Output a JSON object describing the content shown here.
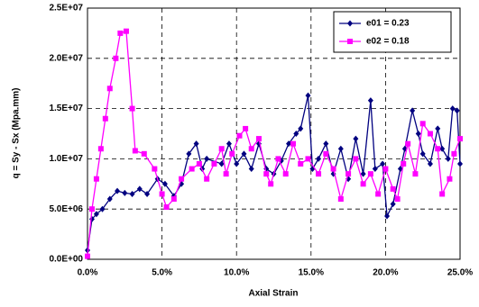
{
  "chart_data": {
    "type": "line",
    "x_label": "Axial Strain",
    "y_label": "q = Sy - Sx (Mpa.mm)",
    "xlim": [
      0,
      25
    ],
    "ylim": [
      0,
      25000000
    ],
    "xticks": [
      {
        "value": 0,
        "label": "0.0%"
      },
      {
        "value": 5,
        "label": "5.0%"
      },
      {
        "value": 10,
        "label": "10.0%"
      },
      {
        "value": 15,
        "label": "15.0%"
      },
      {
        "value": 20,
        "label": "20.0%"
      },
      {
        "value": 25,
        "label": "25.0%"
      }
    ],
    "yticks": [
      {
        "value": 0,
        "label": "0.0E+00"
      },
      {
        "value": 5000000,
        "label": "5.0E+06"
      },
      {
        "value": 10000000,
        "label": "1.0E+07"
      },
      {
        "value": 15000000,
        "label": "1.5E+07"
      },
      {
        "value": 20000000,
        "label": "2.0E+07"
      },
      {
        "value": 25000000,
        "label": "2.5E+07"
      }
    ],
    "grid": true,
    "legend_position": "top-right",
    "series": [
      {
        "name": "e01 = 0.23",
        "color": "#000080",
        "marker": "diamond",
        "x": [
          0,
          0.3,
          0.6,
          1,
          1.5,
          2,
          2.5,
          3,
          3.5,
          4,
          4.7,
          5.2,
          5.8,
          6.3,
          6.8,
          7.3,
          7.7,
          8,
          9,
          9.5,
          10,
          10.5,
          11,
          11.5,
          12,
          12.5,
          13,
          13.5,
          14,
          14.3,
          14.8,
          15.1,
          15.5,
          16,
          16.5,
          17,
          17.5,
          18,
          18.5,
          19,
          19.3,
          19.8,
          20.1,
          20.5,
          21,
          21.3,
          21.8,
          22.2,
          22.5,
          23,
          23.5,
          23.8,
          24.2,
          24.5,
          24.8,
          25
        ],
        "values": [
          900000,
          4000000,
          4500000,
          5000000,
          6000000,
          6800000,
          6600000,
          6500000,
          7000000,
          6500000,
          8000000,
          7500000,
          6300000,
          7500000,
          10500000,
          11500000,
          9000000,
          10000000,
          9500000,
          11500000,
          9500000,
          10500000,
          9000000,
          11500000,
          9000000,
          8500000,
          9800000,
          11500000,
          12500000,
          13000000,
          16300000,
          9000000,
          10000000,
          11500000,
          8500000,
          11000000,
          8000000,
          12000000,
          8500000,
          15800000,
          9000000,
          9500000,
          4300000,
          5500000,
          9000000,
          11000000,
          14800000,
          12500000,
          10500000,
          9500000,
          13000000,
          11000000,
          10000000,
          15000000,
          14800000,
          9500000
        ]
      },
      {
        "name": "e02 = 0.18",
        "color": "#FF00FF",
        "marker": "square",
        "x": [
          0,
          0.3,
          0.6,
          0.9,
          1.2,
          1.5,
          1.9,
          2.2,
          2.6,
          3,
          3.2,
          3.8,
          4.5,
          5,
          5.3,
          5.8,
          6.3,
          7,
          7.5,
          8,
          8.5,
          9,
          9.3,
          9.7,
          10.2,
          10.6,
          11,
          11.5,
          12,
          12.3,
          12.8,
          13.3,
          13.8,
          14.3,
          14.8,
          15.5,
          16,
          16.5,
          17,
          17.5,
          18,
          18.5,
          19,
          19.5,
          20,
          20.5,
          20.8,
          21.2,
          21.5,
          22,
          22.5,
          23,
          23.5,
          23.8,
          24.3,
          24.6,
          25
        ],
        "values": [
          300000,
          5000000,
          8000000,
          11000000,
          14000000,
          17000000,
          20000000,
          22500000,
          22700000,
          15000000,
          10800000,
          10500000,
          9000000,
          6500000,
          5200000,
          6000000,
          8000000,
          9000000,
          9500000,
          8000000,
          9500000,
          11000000,
          8500000,
          10500000,
          12300000,
          13000000,
          11000000,
          12000000,
          8500000,
          7500000,
          10000000,
          8500000,
          11500000,
          9500000,
          10000000,
          8500000,
          10500000,
          9000000,
          6000000,
          8500000,
          10000000,
          7500000,
          8500000,
          6500000,
          9000000,
          7000000,
          6000000,
          9500000,
          11500000,
          8500000,
          13500000,
          12500000,
          11000000,
          6500000,
          8000000,
          10500000,
          12000000
        ]
      }
    ]
  }
}
